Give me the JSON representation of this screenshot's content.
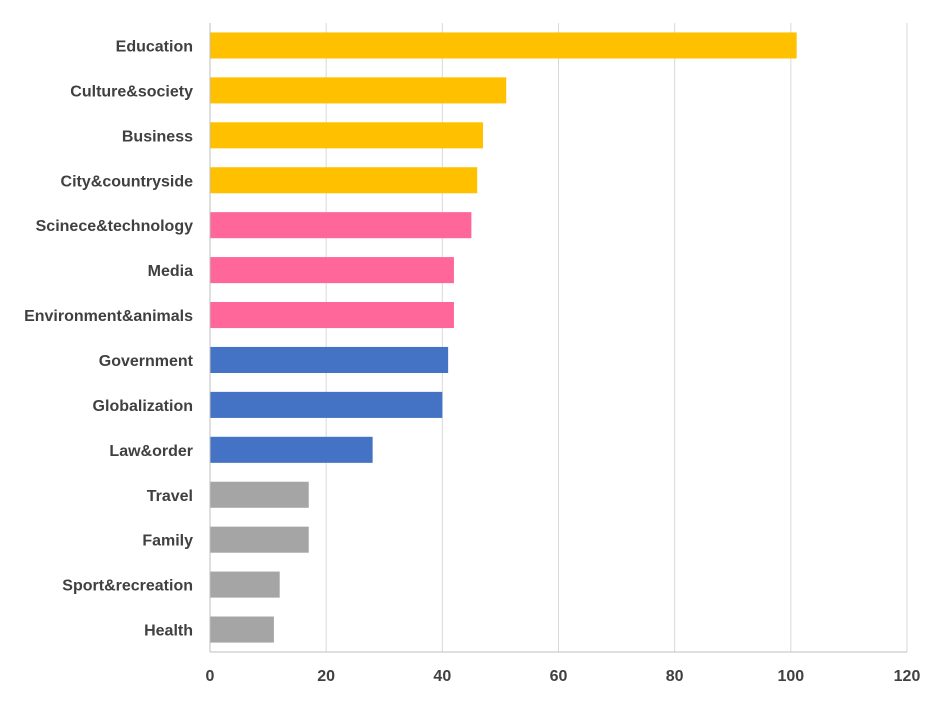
{
  "chart_data": {
    "type": "bar",
    "orientation": "horizontal",
    "title": "",
    "xlabel": "",
    "ylabel": "",
    "xlim": [
      0,
      120
    ],
    "xticks": [
      0,
      20,
      40,
      60,
      80,
      100,
      120
    ],
    "grid": true,
    "legend": "none",
    "categories": [
      "Education",
      "Culture&society",
      "Business",
      "City&countryside",
      "Scinece&technology",
      "Media",
      "Environment&animals",
      "Government",
      "Globalization",
      "Law&order",
      "Travel",
      "Family",
      "Sport&recreation",
      "Health"
    ],
    "values": [
      101,
      51,
      47,
      46,
      45,
      42,
      42,
      41,
      40,
      28,
      17,
      17,
      12,
      11
    ],
    "bar_colors": [
      "#FFC000",
      "#FFC000",
      "#FFC000",
      "#FFC000",
      "#FF6699",
      "#FF6699",
      "#FF6699",
      "#4472C4",
      "#4472C4",
      "#4472C4",
      "#A5A5A5",
      "#A5A5A5",
      "#A5A5A5",
      "#A5A5A5"
    ]
  }
}
